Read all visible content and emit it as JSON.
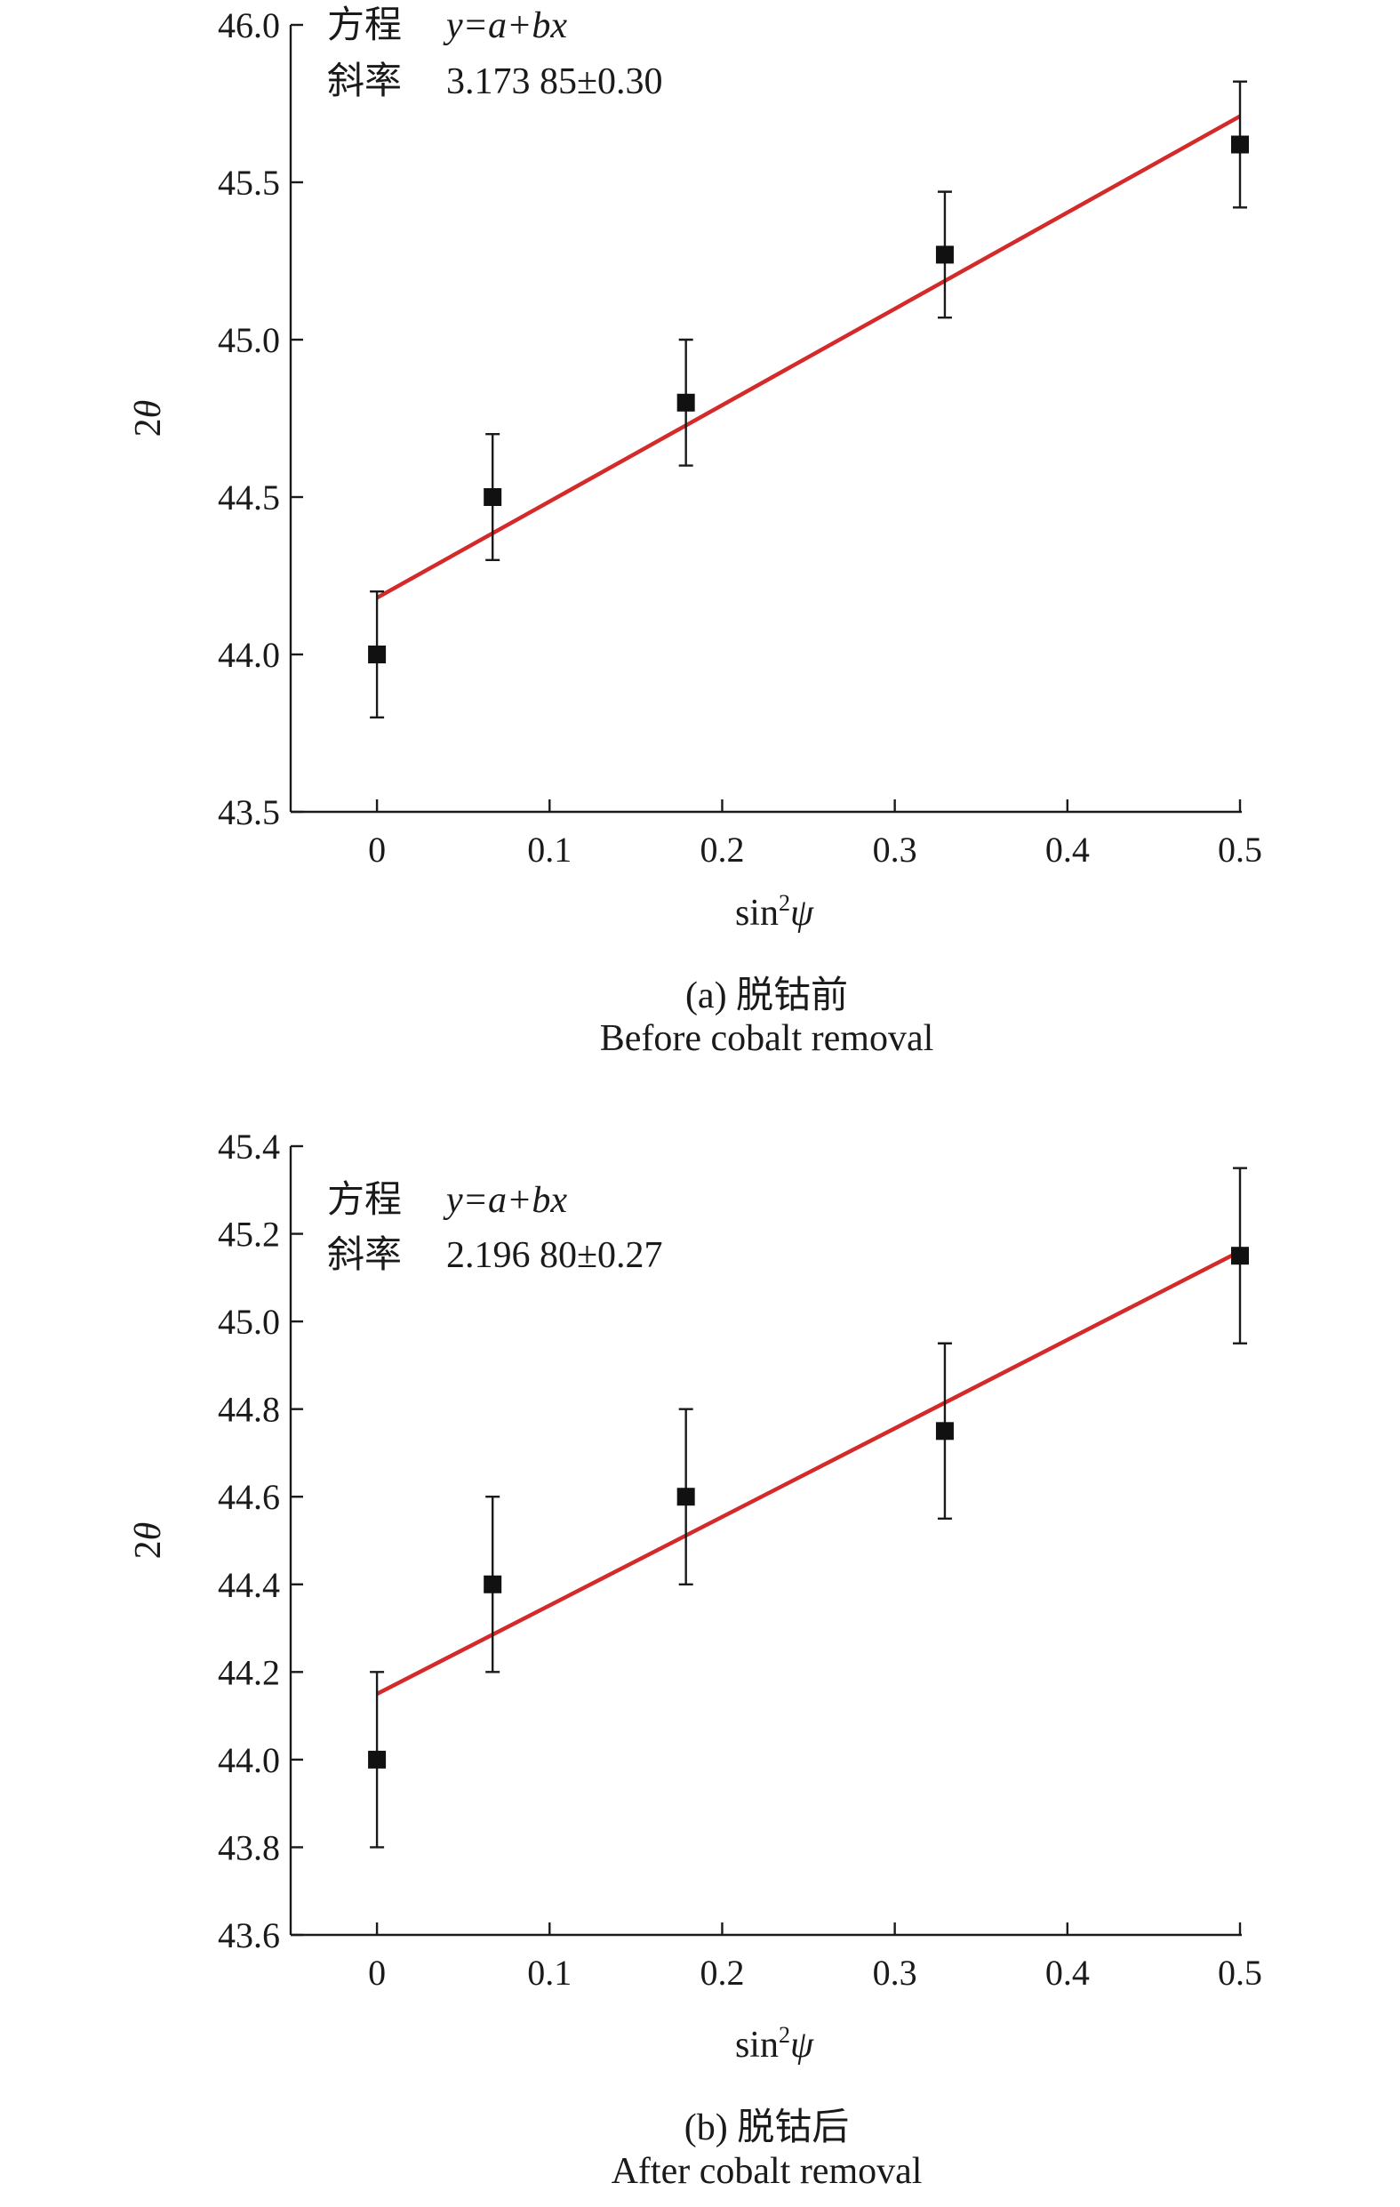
{
  "chart_data": [
    {
      "type": "scatter",
      "xlabel": {
        "prefix": "sin",
        "sup": "2",
        "symbol": "ψ"
      },
      "ylabel": "2θ",
      "xlim": [
        -0.05,
        0.5
      ],
      "ylim": [
        43.5,
        46.0
      ],
      "xticks": [
        "0",
        "0.1",
        "0.2",
        "0.3",
        "0.4",
        "0.5"
      ],
      "yticks": [
        "43.5",
        "44.0",
        "44.5",
        "45.0",
        "45.5",
        "46.0"
      ],
      "points": [
        {
          "x": 0,
          "y": 44.0,
          "err": 0.2
        },
        {
          "x": 0.067,
          "y": 44.5,
          "err": 0.2
        },
        {
          "x": 0.179,
          "y": 44.8,
          "err": 0.2
        },
        {
          "x": 0.329,
          "y": 45.27,
          "err": 0.2
        },
        {
          "x": 0.5,
          "y": 45.62,
          "err": 0.2
        }
      ],
      "fit": {
        "x0": 0,
        "y0": 44.18,
        "x1": 0.5,
        "y1": 45.71
      },
      "annotation": {
        "equation_label": "方程",
        "equation": "y=a+bx",
        "slope_label": "斜率",
        "slope": "3.173 85±0.30"
      },
      "caption_zh": "(a) 脱钴前",
      "caption_en": "Before cobalt removal"
    },
    {
      "type": "scatter",
      "xlabel": {
        "prefix": "sin",
        "sup": "2",
        "symbol": "ψ"
      },
      "ylabel": "2θ",
      "xlim": [
        -0.05,
        0.5
      ],
      "ylim": [
        43.6,
        45.4
      ],
      "xticks": [
        "0",
        "0.1",
        "0.2",
        "0.3",
        "0.4",
        "0.5"
      ],
      "yticks": [
        "43.6",
        "43.8",
        "44.0",
        "44.2",
        "44.4",
        "44.6",
        "44.8",
        "45.0",
        "45.2",
        "45.4"
      ],
      "points": [
        {
          "x": 0,
          "y": 44.0,
          "err": 0.2
        },
        {
          "x": 0.067,
          "y": 44.4,
          "err": 0.2
        },
        {
          "x": 0.179,
          "y": 44.6,
          "err": 0.2
        },
        {
          "x": 0.329,
          "y": 44.75,
          "err": 0.2
        },
        {
          "x": 0.5,
          "y": 45.15,
          "err": 0.2
        }
      ],
      "fit": {
        "x0": 0,
        "y0": 44.15,
        "x1": 0.5,
        "y1": 45.16
      },
      "annotation": {
        "equation_label": "方程",
        "equation": "y=a+bx",
        "slope_label": "斜率",
        "slope": "2.196 80±0.27"
      },
      "caption_zh": "(b) 脱钴后",
      "caption_en": "After cobalt removal"
    }
  ]
}
